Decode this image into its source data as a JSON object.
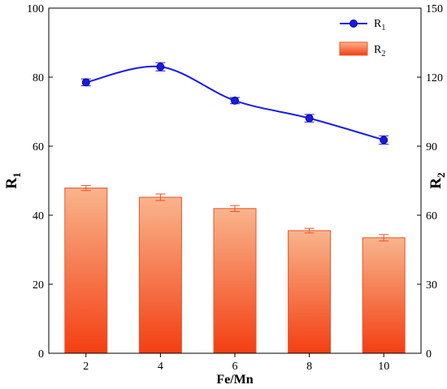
{
  "chart_data": {
    "type": "bar+line",
    "x": [
      2,
      4,
      6,
      8,
      10
    ],
    "xlabel": "Fe/Mn",
    "y_left": {
      "label": "R",
      "label_sub": "1",
      "range": [
        0,
        100
      ],
      "ticks": [
        0,
        20,
        40,
        60,
        80,
        100
      ]
    },
    "y_right": {
      "label": "R",
      "label_sub": "2",
      "range": [
        0,
        150
      ],
      "ticks": [
        0,
        30,
        60,
        90,
        120,
        150
      ]
    },
    "series": [
      {
        "name": "R",
        "name_sub": "1",
        "kind": "line",
        "axis": "left",
        "values": [
          78.5,
          83.0,
          73.2,
          68.1,
          61.8
        ],
        "errors": [
          1.0,
          1.2,
          0.9,
          1.1,
          1.2
        ],
        "color": "#1a1ae6"
      },
      {
        "name": "R",
        "name_sub": "2",
        "kind": "bar",
        "axis": "right",
        "values": [
          71.8,
          67.8,
          62.9,
          53.3,
          50.2
        ],
        "errors": [
          1.1,
          1.4,
          1.3,
          1.0,
          1.4
        ],
        "color_top": "#f9b48c",
        "color_bottom": "#f33f12",
        "edge_color": "#e8542a"
      }
    ],
    "x_tick_labels": [
      "2",
      "4",
      "6",
      "8",
      "10"
    ],
    "legend_position": "top-right",
    "grid": false
  }
}
